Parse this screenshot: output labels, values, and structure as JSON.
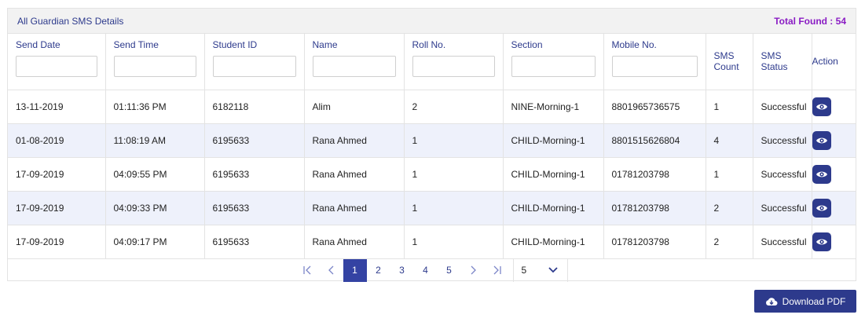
{
  "panel": {
    "title": "All Guardian SMS Details",
    "total_found": "Total Found : 54"
  },
  "columns": [
    {
      "label": "Send Date",
      "filter": true
    },
    {
      "label": "Send Time",
      "filter": true
    },
    {
      "label": "Student ID",
      "filter": true
    },
    {
      "label": "Name",
      "filter": true
    },
    {
      "label": "Roll No.",
      "filter": true
    },
    {
      "label": "Section",
      "filter": true
    },
    {
      "label": "Mobile No.",
      "filter": true
    },
    {
      "label": "SMS Count",
      "filter": false
    },
    {
      "label": "SMS Status",
      "filter": false
    },
    {
      "label": "Action",
      "filter": false
    }
  ],
  "rows": [
    {
      "send_date": "13-11-2019",
      "send_time": "01:11:36 PM",
      "student_id": "6182118",
      "name": "Alim",
      "roll": "2",
      "section": "NINE-Morning-1",
      "mobile": "8801965736575",
      "sms_count": "1",
      "status": "Successful"
    },
    {
      "send_date": "01-08-2019",
      "send_time": "11:08:19 AM",
      "student_id": "6195633",
      "name": "Rana Ahmed",
      "roll": "1",
      "section": "CHILD-Morning-1",
      "mobile": "8801515626804",
      "sms_count": "4",
      "status": "Successful"
    },
    {
      "send_date": "17-09-2019",
      "send_time": "04:09:55 PM",
      "student_id": "6195633",
      "name": "Rana Ahmed",
      "roll": "1",
      "section": "CHILD-Morning-1",
      "mobile": "01781203798",
      "sms_count": "1",
      "status": "Successful"
    },
    {
      "send_date": "17-09-2019",
      "send_time": "04:09:33 PM",
      "student_id": "6195633",
      "name": "Rana Ahmed",
      "roll": "1",
      "section": "CHILD-Morning-1",
      "mobile": "01781203798",
      "sms_count": "2",
      "status": "Successful"
    },
    {
      "send_date": "17-09-2019",
      "send_time": "04:09:17 PM",
      "student_id": "6195633",
      "name": "Rana Ahmed",
      "roll": "1",
      "section": "CHILD-Morning-1",
      "mobile": "01781203798",
      "sms_count": "2",
      "status": "Successful"
    }
  ],
  "pagination": {
    "first_icon": "first-page-icon",
    "prev_icon": "chevron-left-icon",
    "pages": [
      "1",
      "2",
      "3",
      "4",
      "5"
    ],
    "current_page": "1",
    "next_icon": "chevron-right-icon",
    "last_icon": "last-page-icon",
    "page_size": "5",
    "page_size_icon": "chevron-down-icon"
  },
  "download": {
    "label": "Download PDF",
    "icon": "cloud-download-icon"
  },
  "colors": {
    "primary": "#2d3a8c",
    "active_page": "#3443a3",
    "total_found": "#8a1cc4",
    "row_alt": "#eef1fb"
  }
}
